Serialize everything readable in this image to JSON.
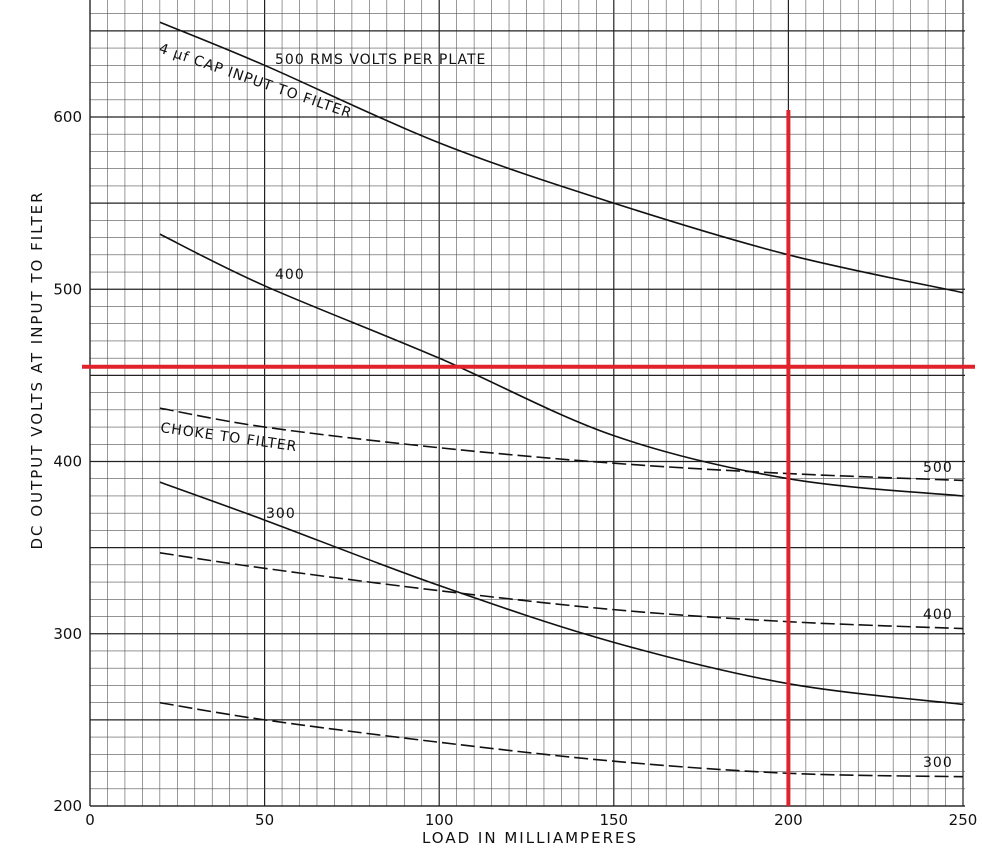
{
  "chart_data": {
    "type": "line",
    "xlabel": "LOAD IN MILLIAMPERES",
    "ylabel": "DC OUTPUT VOLTS AT INPUT TO FILTER",
    "xlim": [
      0,
      250
    ],
    "ylim": [
      200,
      660
    ],
    "x_ticks": [
      "0",
      "50",
      "100",
      "150",
      "200",
      "250"
    ],
    "y_ticks": [
      "200",
      "300",
      "400",
      "500",
      "600"
    ],
    "grid": true,
    "series": [
      {
        "label": "500",
        "style": "solid",
        "x": [
          20,
          50,
          100,
          150,
          200,
          250
        ],
        "y": [
          655,
          630,
          585,
          550,
          520,
          498
        ]
      },
      {
        "label": "400",
        "style": "solid",
        "x": [
          20,
          50,
          100,
          150,
          200,
          250
        ],
        "y": [
          532,
          502,
          460,
          415,
          390,
          380
        ]
      },
      {
        "label": "300",
        "style": "solid",
        "x": [
          20,
          50,
          100,
          150,
          200,
          250
        ],
        "y": [
          388,
          366,
          328,
          295,
          271,
          259
        ]
      },
      {
        "label": "500",
        "style": "dashed",
        "x": [
          20,
          50,
          100,
          150,
          200,
          250
        ],
        "y": [
          431,
          420,
          408,
          399,
          393,
          389
        ]
      },
      {
        "label": "400",
        "style": "dashed",
        "x": [
          20,
          50,
          100,
          150,
          200,
          250
        ],
        "y": [
          347,
          338,
          325,
          314,
          307,
          303
        ]
      },
      {
        "label": "300",
        "style": "dashed",
        "x": [
          20,
          50,
          100,
          150,
          200,
          250
        ],
        "y": [
          260,
          250,
          237,
          226,
          219,
          217
        ]
      }
    ],
    "annotations": {
      "cap_group": "500 RMS VOLTS PER PLATE",
      "cap_filter": "4 μf CAP INPUT TO FILTER",
      "choke_filter": "CHOKE TO FILTER",
      "cap_400": "400",
      "cap_300": "300",
      "choke_500": "500",
      "choke_400": "400",
      "choke_300": "300"
    },
    "marker_lines": {
      "color": "#e0222a",
      "vertical_x": 200,
      "horizontal_y": 455
    }
  }
}
